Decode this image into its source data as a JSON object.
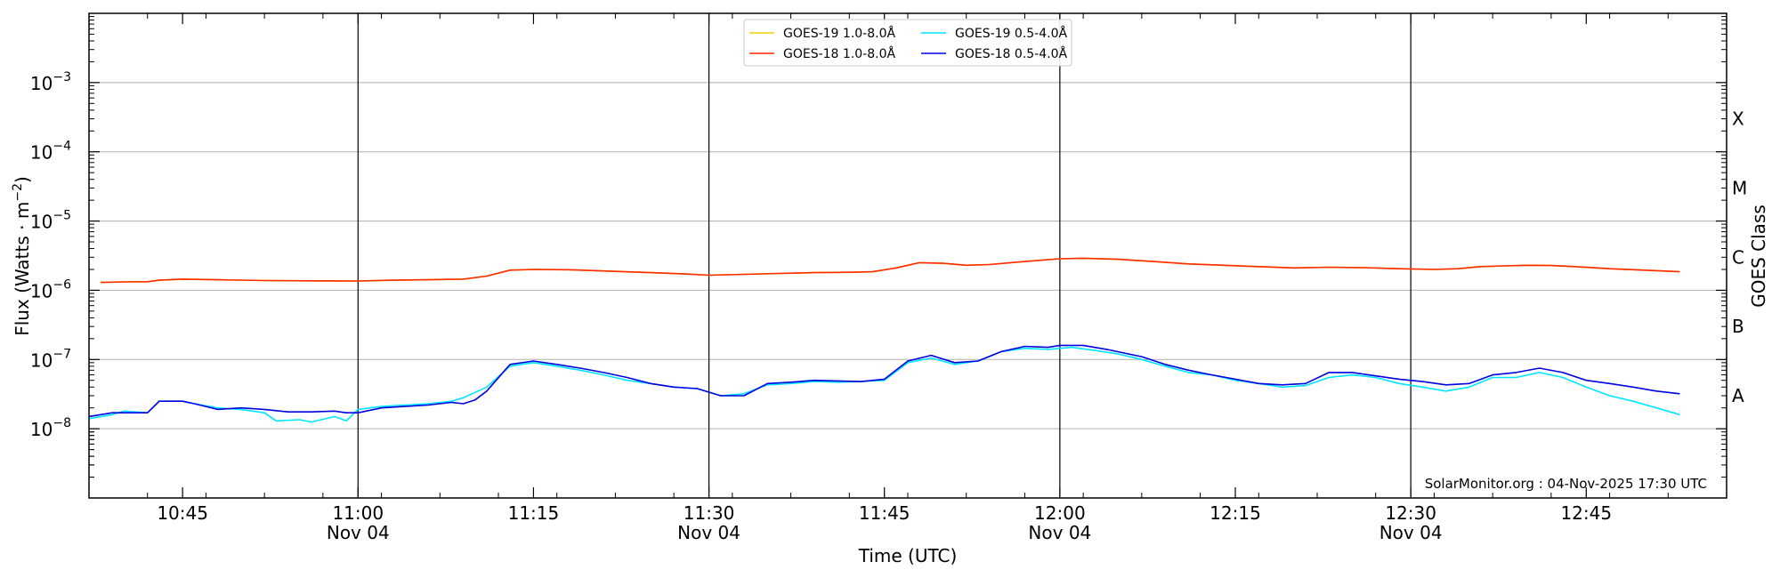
{
  "chart_data": {
    "type": "line",
    "title": "",
    "xlabel": "Time (UTC)",
    "ylabel": "Flux (Watts · m",
    "ylabel_sup": "−2",
    "ylabel_close": ")",
    "y_scale": "log",
    "ylim": [
      1e-09,
      0.01
    ],
    "xlim": [
      "10:37",
      "12:57"
    ],
    "grid": "horizontal at major y ticks",
    "y_ticks": [
      {
        "value": 1e-08,
        "base": "10",
        "exp": "−8"
      },
      {
        "value": 1e-07,
        "base": "10",
        "exp": "−7"
      },
      {
        "value": 1e-06,
        "base": "10",
        "exp": "−6"
      },
      {
        "value": 1e-05,
        "base": "10",
        "exp": "−5"
      },
      {
        "value": 0.0001,
        "base": "10",
        "exp": "−4"
      },
      {
        "value": 0.001,
        "base": "10",
        "exp": "−3"
      }
    ],
    "x_ticks": [
      {
        "time": "10:45",
        "label": "10:45",
        "date": ""
      },
      {
        "time": "11:00",
        "label": "11:00",
        "date": "Nov 04"
      },
      {
        "time": "11:15",
        "label": "11:15",
        "date": ""
      },
      {
        "time": "11:30",
        "label": "11:30",
        "date": "Nov 04"
      },
      {
        "time": "11:45",
        "label": "11:45",
        "date": ""
      },
      {
        "time": "12:00",
        "label": "12:00",
        "date": "Nov 04"
      },
      {
        "time": "12:15",
        "label": "12:15",
        "date": ""
      },
      {
        "time": "12:30",
        "label": "12:30",
        "date": "Nov 04"
      },
      {
        "time": "12:45",
        "label": "12:45",
        "date": ""
      }
    ],
    "vertical_lines": [
      "11:00",
      "11:30",
      "12:00",
      "12:30"
    ],
    "right_axis": {
      "label": "GOES Class",
      "classes": [
        {
          "label": "A",
          "value": 3e-08
        },
        {
          "label": "B",
          "value": 3e-07
        },
        {
          "label": "C",
          "value": 3e-06
        },
        {
          "label": "M",
          "value": 3e-05
        },
        {
          "label": "X",
          "value": 0.0003
        }
      ]
    },
    "legend": "top-center",
    "legend_entries": [
      {
        "name": "GOES-19 1.0-8.0Å",
        "color": "#f5d000"
      },
      {
        "name": "GOES-19 0.5-4.0Å",
        "color": "#00e5ff"
      },
      {
        "name": "GOES-18 1.0-8.0Å",
        "color": "#ff2a00"
      },
      {
        "name": "GOES-18 0.5-4.0Å",
        "color": "#0000e0"
      }
    ],
    "credit": "SolarMonitor.org : 04-Nov-2025 17:30 UTC",
    "series": [
      {
        "name": "GOES-19 1.0-8.0Å",
        "color": "#f5d000",
        "points": [
          [
            "10:38",
            1.3e-06
          ],
          [
            "10:40",
            1.32e-06
          ],
          [
            "10:42",
            1.33e-06
          ],
          [
            "10:43",
            1.4e-06
          ],
          [
            "10:45",
            1.45e-06
          ],
          [
            "10:48",
            1.42e-06
          ],
          [
            "10:52",
            1.38e-06
          ],
          [
            "10:56",
            1.37e-06
          ],
          [
            "11:00",
            1.36e-06
          ],
          [
            "11:03",
            1.4e-06
          ],
          [
            "11:06",
            1.42e-06
          ],
          [
            "11:09",
            1.45e-06
          ],
          [
            "11:11",
            1.6e-06
          ],
          [
            "11:13",
            1.95e-06
          ],
          [
            "11:15",
            2e-06
          ],
          [
            "11:18",
            1.98e-06
          ],
          [
            "11:21",
            1.9e-06
          ],
          [
            "11:25",
            1.8e-06
          ],
          [
            "11:28",
            1.72e-06
          ],
          [
            "11:30",
            1.65e-06
          ],
          [
            "11:33",
            1.7e-06
          ],
          [
            "11:36",
            1.75e-06
          ],
          [
            "11:39",
            1.8e-06
          ],
          [
            "11:42",
            1.82e-06
          ],
          [
            "11:44",
            1.85e-06
          ],
          [
            "11:46",
            2.1e-06
          ],
          [
            "11:48",
            2.5e-06
          ],
          [
            "11:50",
            2.45e-06
          ],
          [
            "11:52",
            2.3e-06
          ],
          [
            "11:54",
            2.35e-06
          ],
          [
            "11:57",
            2.6e-06
          ],
          [
            "12:00",
            2.85e-06
          ],
          [
            "12:02",
            2.9e-06
          ],
          [
            "12:05",
            2.8e-06
          ],
          [
            "12:08",
            2.6e-06
          ],
          [
            "12:11",
            2.4e-06
          ],
          [
            "12:14",
            2.3e-06
          ],
          [
            "12:17",
            2.2e-06
          ],
          [
            "12:20",
            2.1e-06
          ],
          [
            "12:23",
            2.15e-06
          ],
          [
            "12:26",
            2.12e-06
          ],
          [
            "12:29",
            2.05e-06
          ],
          [
            "12:32",
            2e-06
          ],
          [
            "12:34",
            2.05e-06
          ],
          [
            "12:36",
            2.2e-06
          ],
          [
            "12:38",
            2.25e-06
          ],
          [
            "12:40",
            2.3e-06
          ],
          [
            "12:42",
            2.28e-06
          ],
          [
            "12:44",
            2.2e-06
          ],
          [
            "12:47",
            2.05e-06
          ],
          [
            "12:50",
            1.95e-06
          ],
          [
            "12:53",
            1.85e-06
          ]
        ]
      },
      {
        "name": "GOES-18 1.0-8.0Å",
        "color": "#ff2a00",
        "points": [
          [
            "10:38",
            1.3e-06
          ],
          [
            "10:40",
            1.32e-06
          ],
          [
            "10:42",
            1.33e-06
          ],
          [
            "10:43",
            1.4e-06
          ],
          [
            "10:45",
            1.45e-06
          ],
          [
            "10:48",
            1.42e-06
          ],
          [
            "10:52",
            1.38e-06
          ],
          [
            "10:56",
            1.37e-06
          ],
          [
            "11:00",
            1.36e-06
          ],
          [
            "11:03",
            1.4e-06
          ],
          [
            "11:06",
            1.42e-06
          ],
          [
            "11:09",
            1.45e-06
          ],
          [
            "11:11",
            1.6e-06
          ],
          [
            "11:13",
            1.95e-06
          ],
          [
            "11:15",
            2e-06
          ],
          [
            "11:18",
            1.98e-06
          ],
          [
            "11:21",
            1.9e-06
          ],
          [
            "11:25",
            1.8e-06
          ],
          [
            "11:28",
            1.72e-06
          ],
          [
            "11:30",
            1.65e-06
          ],
          [
            "11:33",
            1.7e-06
          ],
          [
            "11:36",
            1.75e-06
          ],
          [
            "11:39",
            1.8e-06
          ],
          [
            "11:42",
            1.82e-06
          ],
          [
            "11:44",
            1.85e-06
          ],
          [
            "11:46",
            2.1e-06
          ],
          [
            "11:48",
            2.5e-06
          ],
          [
            "11:50",
            2.45e-06
          ],
          [
            "11:52",
            2.3e-06
          ],
          [
            "11:54",
            2.35e-06
          ],
          [
            "11:57",
            2.6e-06
          ],
          [
            "12:00",
            2.85e-06
          ],
          [
            "12:02",
            2.9e-06
          ],
          [
            "12:05",
            2.8e-06
          ],
          [
            "12:08",
            2.6e-06
          ],
          [
            "12:11",
            2.4e-06
          ],
          [
            "12:14",
            2.3e-06
          ],
          [
            "12:17",
            2.2e-06
          ],
          [
            "12:20",
            2.1e-06
          ],
          [
            "12:23",
            2.15e-06
          ],
          [
            "12:26",
            2.12e-06
          ],
          [
            "12:29",
            2.05e-06
          ],
          [
            "12:32",
            2e-06
          ],
          [
            "12:34",
            2.05e-06
          ],
          [
            "12:36",
            2.2e-06
          ],
          [
            "12:38",
            2.25e-06
          ],
          [
            "12:40",
            2.3e-06
          ],
          [
            "12:42",
            2.28e-06
          ],
          [
            "12:44",
            2.2e-06
          ],
          [
            "12:47",
            2.05e-06
          ],
          [
            "12:50",
            1.95e-06
          ],
          [
            "12:53",
            1.85e-06
          ]
        ]
      },
      {
        "name": "GOES-19 0.5-4.0Å",
        "color": "#00e5ff",
        "points": [
          [
            "10:37",
            1.4e-08
          ],
          [
            "10:39",
            1.6e-08
          ],
          [
            "10:40",
            1.8e-08
          ],
          [
            "10:42",
            1.7e-08
          ],
          [
            "10:43",
            2.5e-08
          ],
          [
            "10:45",
            2.5e-08
          ],
          [
            "10:46",
            2.3e-08
          ],
          [
            "10:48",
            2e-08
          ],
          [
            "10:50",
            1.9e-08
          ],
          [
            "10:52",
            1.7e-08
          ],
          [
            "10:53",
            1.3e-08
          ],
          [
            "10:55",
            1.35e-08
          ],
          [
            "10:56",
            1.25e-08
          ],
          [
            "10:58",
            1.5e-08
          ],
          [
            "10:59",
            1.3e-08
          ],
          [
            "11:00",
            1.9e-08
          ],
          [
            "11:02",
            2.1e-08
          ],
          [
            "11:04",
            2.2e-08
          ],
          [
            "11:06",
            2.3e-08
          ],
          [
            "11:08",
            2.5e-08
          ],
          [
            "11:09",
            2.8e-08
          ],
          [
            "11:11",
            4e-08
          ],
          [
            "11:13",
            8e-08
          ],
          [
            "11:15",
            9e-08
          ],
          [
            "11:17",
            8e-08
          ],
          [
            "11:19",
            7e-08
          ],
          [
            "11:21",
            6e-08
          ],
          [
            "11:23",
            5e-08
          ],
          [
            "11:25",
            4.5e-08
          ],
          [
            "11:27",
            4e-08
          ],
          [
            "11:29",
            3.8e-08
          ],
          [
            "11:31",
            3e-08
          ],
          [
            "11:33",
            3.2e-08
          ],
          [
            "11:35",
            4.3e-08
          ],
          [
            "11:37",
            4.5e-08
          ],
          [
            "11:39",
            4.8e-08
          ],
          [
            "11:41",
            4.7e-08
          ],
          [
            "11:43",
            4.8e-08
          ],
          [
            "11:45",
            5e-08
          ],
          [
            "11:47",
            9e-08
          ],
          [
            "11:49",
            1.05e-07
          ],
          [
            "11:51",
            8.5e-08
          ],
          [
            "11:53",
            9.5e-08
          ],
          [
            "11:55",
            1.3e-07
          ],
          [
            "11:57",
            1.45e-07
          ],
          [
            "11:59",
            1.4e-07
          ],
          [
            "12:01",
            1.5e-07
          ],
          [
            "12:03",
            1.35e-07
          ],
          [
            "12:05",
            1.2e-07
          ],
          [
            "12:07",
            1e-07
          ],
          [
            "12:09",
            8e-08
          ],
          [
            "12:11",
            6.5e-08
          ],
          [
            "12:13",
            6e-08
          ],
          [
            "12:15",
            5e-08
          ],
          [
            "12:17",
            4.5e-08
          ],
          [
            "12:19",
            4e-08
          ],
          [
            "12:21",
            4.2e-08
          ],
          [
            "12:23",
            5.5e-08
          ],
          [
            "12:25",
            6e-08
          ],
          [
            "12:27",
            5.5e-08
          ],
          [
            "12:29",
            4.5e-08
          ],
          [
            "12:31",
            4e-08
          ],
          [
            "12:33",
            3.5e-08
          ],
          [
            "12:35",
            4e-08
          ],
          [
            "12:37",
            5.5e-08
          ],
          [
            "12:39",
            5.5e-08
          ],
          [
            "12:41",
            6.5e-08
          ],
          [
            "12:43",
            5.5e-08
          ],
          [
            "12:45",
            4e-08
          ],
          [
            "12:47",
            3e-08
          ],
          [
            "12:49",
            2.5e-08
          ],
          [
            "12:51",
            2e-08
          ],
          [
            "12:53",
            1.6e-08
          ]
        ]
      },
      {
        "name": "GOES-18 0.5-4.0Å",
        "color": "#0000e0",
        "points": [
          [
            "10:37",
            1.5e-08
          ],
          [
            "10:39",
            1.7e-08
          ],
          [
            "10:41",
            1.7e-08
          ],
          [
            "10:42",
            1.7e-08
          ],
          [
            "10:43",
            2.5e-08
          ],
          [
            "10:45",
            2.5e-08
          ],
          [
            "10:46",
            2.3e-08
          ],
          [
            "10:48",
            1.9e-08
          ],
          [
            "10:50",
            2e-08
          ],
          [
            "10:52",
            1.9e-08
          ],
          [
            "10:54",
            1.75e-08
          ],
          [
            "10:56",
            1.75e-08
          ],
          [
            "10:58",
            1.8e-08
          ],
          [
            "10:59",
            1.7e-08
          ],
          [
            "11:00",
            1.7e-08
          ],
          [
            "11:02",
            2e-08
          ],
          [
            "11:04",
            2.1e-08
          ],
          [
            "11:06",
            2.2e-08
          ],
          [
            "11:08",
            2.4e-08
          ],
          [
            "11:09",
            2.3e-08
          ],
          [
            "11:10",
            2.6e-08
          ],
          [
            "11:11",
            3.5e-08
          ],
          [
            "11:13",
            8.5e-08
          ],
          [
            "11:15",
            9.5e-08
          ],
          [
            "11:17",
            8.5e-08
          ],
          [
            "11:19",
            7.5e-08
          ],
          [
            "11:21",
            6.5e-08
          ],
          [
            "11:23",
            5.5e-08
          ],
          [
            "11:25",
            4.5e-08
          ],
          [
            "11:27",
            4e-08
          ],
          [
            "11:29",
            3.8e-08
          ],
          [
            "11:31",
            3e-08
          ],
          [
            "11:33",
            3e-08
          ],
          [
            "11:35",
            4.5e-08
          ],
          [
            "11:37",
            4.7e-08
          ],
          [
            "11:39",
            5e-08
          ],
          [
            "11:41",
            4.9e-08
          ],
          [
            "11:43",
            4.8e-08
          ],
          [
            "11:45",
            5.2e-08
          ],
          [
            "11:47",
            9.5e-08
          ],
          [
            "11:49",
            1.15e-07
          ],
          [
            "11:51",
            9e-08
          ],
          [
            "11:53",
            9.5e-08
          ],
          [
            "11:55",
            1.3e-07
          ],
          [
            "11:57",
            1.55e-07
          ],
          [
            "11:59",
            1.5e-07
          ],
          [
            "12:00",
            1.6e-07
          ],
          [
            "12:02",
            1.6e-07
          ],
          [
            "12:04",
            1.4e-07
          ],
          [
            "12:07",
            1.1e-07
          ],
          [
            "12:09",
            8.5e-08
          ],
          [
            "12:11",
            7e-08
          ],
          [
            "12:13",
            6e-08
          ],
          [
            "12:15",
            5.2e-08
          ],
          [
            "12:17",
            4.5e-08
          ],
          [
            "12:19",
            4.3e-08
          ],
          [
            "12:21",
            4.5e-08
          ],
          [
            "12:23",
            6.5e-08
          ],
          [
            "12:25",
            6.5e-08
          ],
          [
            "12:27",
            5.8e-08
          ],
          [
            "12:29",
            5.2e-08
          ],
          [
            "12:31",
            4.8e-08
          ],
          [
            "12:33",
            4.3e-08
          ],
          [
            "12:35",
            4.5e-08
          ],
          [
            "12:37",
            6e-08
          ],
          [
            "12:39",
            6.5e-08
          ],
          [
            "12:41",
            7.5e-08
          ],
          [
            "12:43",
            6.5e-08
          ],
          [
            "12:45",
            5e-08
          ],
          [
            "12:47",
            4.5e-08
          ],
          [
            "12:49",
            4e-08
          ],
          [
            "12:51",
            3.5e-08
          ],
          [
            "12:53",
            3.2e-08
          ]
        ]
      }
    ]
  }
}
